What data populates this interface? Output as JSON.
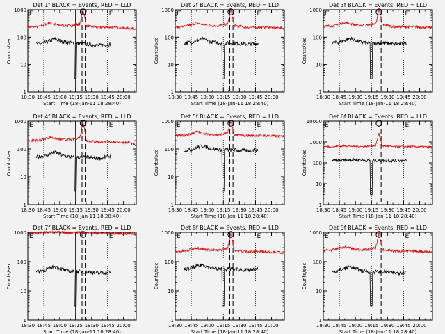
{
  "figure": {
    "start_time_label": "Start Time (18-Jan-11 18:28:40)",
    "colors": {
      "events": "#000000",
      "lld": "#e00000",
      "background": "#f2f2f2"
    }
  },
  "chart_data": [
    {
      "type": "line",
      "title": "Det 1f  BLACK = Events, RED = LLD",
      "xlabel": "Start Time (18-Jan-11 18:28:40)",
      "ylabel": "Counts/sec",
      "y_scale": "log",
      "ylim": [
        1,
        1000
      ],
      "yticks": [
        "1",
        "10",
        "100",
        "1000"
      ],
      "xlim": [
        "18:30",
        "20:12"
      ],
      "xticks": [
        "18:30",
        "18:45",
        "19:00",
        "19:15",
        "19:30",
        "19:45",
        "20:00"
      ],
      "vertical_dotted_lines": [
        "18:45",
        "19:15",
        "19:45"
      ],
      "vertical_dashed_lines": [
        "19:21",
        "19:24"
      ],
      "vertical_solid_lines": [
        "19:15"
      ],
      "markers": {
        "E_left": "E",
        "E_right": "E",
        "circle_at": "19:22"
      },
      "series": [
        {
          "name": "LLD",
          "color": "red",
          "x": [
            "18:30",
            "18:40",
            "18:50",
            "19:00",
            "19:10",
            "19:19",
            "19:22",
            "19:25",
            "19:35",
            "19:50",
            "20:05",
            "20:12"
          ],
          "y": [
            230,
            240,
            330,
            270,
            260,
            300,
            1000,
            260,
            230,
            230,
            210,
            210
          ]
        },
        {
          "name": "Events",
          "color": "black",
          "x": [
            "18:38",
            "18:45",
            "18:55",
            "19:05",
            "19:13",
            "19:27",
            "19:37",
            "19:48"
          ],
          "y": [
            55,
            60,
            85,
            65,
            60,
            55,
            50,
            55
          ]
        }
      ]
    },
    {
      "type": "line",
      "title": "Det 2f  BLACK = Events, RED = LLD",
      "xlabel": "Start Time (18-Jan-11 18:28:40)",
      "ylabel": "Counts/sec",
      "y_scale": "log",
      "ylim": [
        1,
        1000
      ],
      "yticks": [
        "1",
        "10",
        "100",
        "1000"
      ],
      "xlim": [
        "18:30",
        "20:12"
      ],
      "xticks": [
        "18:30",
        "18:45",
        "19:00",
        "19:15",
        "19:30",
        "19:45",
        "20:00"
      ],
      "vertical_dotted_lines": [
        "18:45",
        "19:15",
        "19:45"
      ],
      "vertical_dashed_lines": [
        "19:21",
        "19:24"
      ],
      "vertical_solid_lines": [],
      "markers": {
        "E_left": "E",
        "E_right": "E",
        "circle_at": "19:22"
      },
      "series": [
        {
          "name": "LLD",
          "color": "red",
          "x": [
            "18:30",
            "18:40",
            "18:50",
            "19:00",
            "19:10",
            "19:19",
            "19:22",
            "19:25",
            "19:35",
            "19:50",
            "20:05",
            "20:12"
          ],
          "y": [
            230,
            250,
            330,
            270,
            260,
            300,
            1000,
            270,
            230,
            230,
            220,
            210
          ]
        },
        {
          "name": "Events",
          "color": "black",
          "x": [
            "18:38",
            "18:45",
            "18:55",
            "19:05",
            "19:13",
            "19:27",
            "19:37",
            "19:48"
          ],
          "y": [
            60,
            65,
            85,
            65,
            60,
            60,
            55,
            60
          ]
        }
      ]
    },
    {
      "type": "line",
      "title": "Det 3f  BLACK = Events, RED = LLD",
      "xlabel": "Start Time (18-Jan-11 18:28:40)",
      "ylabel": "Counts/sec",
      "y_scale": "log",
      "ylim": [
        1,
        1000
      ],
      "yticks": [
        "1",
        "10",
        "100",
        "1000"
      ],
      "xlim": [
        "18:30",
        "20:12"
      ],
      "xticks": [
        "18:30",
        "18:45",
        "19:00",
        "19:15",
        "19:30",
        "19:45",
        "20:00"
      ],
      "vertical_dotted_lines": [
        "18:45",
        "19:15",
        "19:45"
      ],
      "vertical_dashed_lines": [
        "19:21",
        "19:24"
      ],
      "vertical_solid_lines": [],
      "markers": {
        "E_left": "E",
        "E_right": "E",
        "circle_at": "19:22"
      },
      "series": [
        {
          "name": "LLD",
          "color": "red",
          "x": [
            "18:30",
            "18:40",
            "18:50",
            "19:00",
            "19:10",
            "19:19",
            "19:22",
            "19:25",
            "19:35",
            "19:50",
            "20:05",
            "20:12"
          ],
          "y": [
            250,
            260,
            350,
            280,
            270,
            320,
            1000,
            290,
            240,
            240,
            230,
            220
          ]
        },
        {
          "name": "Events",
          "color": "black",
          "x": [
            "18:38",
            "18:45",
            "18:55",
            "19:05",
            "19:13",
            "19:27",
            "19:37",
            "19:48"
          ],
          "y": [
            60,
            65,
            90,
            65,
            60,
            60,
            55,
            60
          ]
        }
      ]
    },
    {
      "type": "line",
      "title": "Det 4f  BLACK = Events, RED = LLD",
      "xlabel": "Start Time (18-Jan-11 18:28:40)",
      "ylabel": "Counts/sec",
      "y_scale": "log",
      "ylim": [
        1,
        1000
      ],
      "yticks": [
        "1",
        "10",
        "100",
        "1000"
      ],
      "xlim": [
        "18:30",
        "20:12"
      ],
      "xticks": [
        "18:30",
        "18:45",
        "19:00",
        "19:15",
        "19:30",
        "19:45",
        "20:00"
      ],
      "vertical_dotted_lines": [
        "18:45",
        "19:15",
        "19:45"
      ],
      "vertical_dashed_lines": [
        "19:21",
        "19:24"
      ],
      "vertical_solid_lines": [
        "19:15"
      ],
      "markers": {
        "E_left": "E",
        "E_right": "E",
        "circle_at": "19:22"
      },
      "series": [
        {
          "name": "LLD",
          "color": "red",
          "x": [
            "18:30",
            "18:40",
            "18:50",
            "19:00",
            "19:10",
            "19:19",
            "19:22",
            "19:25",
            "19:35",
            "19:50",
            "20:05",
            "20:12"
          ],
          "y": [
            200,
            200,
            260,
            220,
            210,
            260,
            1000,
            200,
            180,
            180,
            170,
            130
          ]
        },
        {
          "name": "Events",
          "color": "black",
          "x": [
            "18:38",
            "18:45",
            "18:55",
            "19:05",
            "19:13",
            "19:27",
            "19:37",
            "19:48"
          ],
          "y": [
            50,
            55,
            75,
            55,
            50,
            50,
            45,
            55
          ]
        }
      ]
    },
    {
      "type": "line",
      "title": "Det 5f  BLACK = Events, RED = LLD",
      "xlabel": "Start Time (18-Jan-11 18:28:40)",
      "ylabel": "Counts/sec",
      "y_scale": "log",
      "ylim": [
        1,
        1000
      ],
      "yticks": [
        "1",
        "10",
        "100",
        "1000"
      ],
      "xlim": [
        "18:30",
        "20:12"
      ],
      "xticks": [
        "18:30",
        "18:45",
        "19:00",
        "19:15",
        "19:30",
        "19:45",
        "20:00"
      ],
      "vertical_dotted_lines": [
        "18:45",
        "19:15",
        "19:45"
      ],
      "vertical_dashed_lines": [
        "19:21",
        "19:24"
      ],
      "vertical_solid_lines": [],
      "markers": {
        "E_left": "E",
        "E_right": "E",
        "circle_at": "19:22"
      },
      "series": [
        {
          "name": "LLD",
          "color": "red",
          "x": [
            "18:30",
            "18:40",
            "18:50",
            "19:00",
            "19:10",
            "19:19",
            "19:22",
            "19:25",
            "19:35",
            "19:50",
            "20:05",
            "20:12"
          ],
          "y": [
            300,
            310,
            420,
            340,
            320,
            370,
            1000,
            330,
            300,
            300,
            290,
            280
          ]
        },
        {
          "name": "Events",
          "color": "black",
          "x": [
            "18:38",
            "18:45",
            "18:55",
            "19:05",
            "19:13",
            "19:27",
            "19:37",
            "19:48"
          ],
          "y": [
            90,
            95,
            130,
            100,
            95,
            90,
            85,
            95
          ]
        }
      ]
    },
    {
      "type": "line",
      "title": "Det 6f  BLACK = Events, RED = LLD",
      "xlabel": "Start Time (18-Jan-11 18:28:40)",
      "ylabel": "Counts/sec",
      "y_scale": "log",
      "ylim": [
        1,
        10000
      ],
      "yticks": [
        "1",
        "10",
        "100",
        "1000",
        "10000"
      ],
      "xlim": [
        "18:30",
        "20:12"
      ],
      "xticks": [
        "18:30",
        "18:45",
        "19:00",
        "19:15",
        "19:30",
        "19:45",
        "20:00"
      ],
      "vertical_dotted_lines": [
        "18:45",
        "19:15",
        "19:45"
      ],
      "vertical_dashed_lines": [
        "19:21",
        "19:24"
      ],
      "vertical_solid_lines": [],
      "markers": {
        "E_left": "E",
        "E_right": "E",
        "circle_at": "19:22"
      },
      "series": [
        {
          "name": "LLD",
          "color": "red",
          "x": [
            "18:30",
            "18:40",
            "18:50",
            "19:00",
            "19:10",
            "19:19",
            "19:22",
            "19:25",
            "19:35",
            "19:50",
            "20:05",
            "20:12"
          ],
          "y": [
            600,
            600,
            650,
            620,
            600,
            700,
            2500,
            650,
            600,
            600,
            580,
            570
          ]
        },
        {
          "name": "Events",
          "color": "black",
          "x": [
            "18:38",
            "18:45",
            "18:55",
            "19:05",
            "19:13",
            "19:27",
            "19:37",
            "19:48"
          ],
          "y": [
            130,
            130,
            140,
            135,
            130,
            130,
            125,
            130
          ]
        }
      ]
    },
    {
      "type": "line",
      "title": "Det 7f  BLACK = Events, RED = LLD",
      "xlabel": "Start Time (18-Jan-11 18:28:40)",
      "ylabel": "Counts/sec",
      "y_scale": "log",
      "ylim": [
        1,
        1000
      ],
      "yticks": [
        "1",
        "10",
        "100",
        "1000"
      ],
      "xlim": [
        "18:30",
        "20:12"
      ],
      "xticks": [
        "18:30",
        "18:45",
        "19:00",
        "19:15",
        "19:30",
        "19:45",
        "20:00"
      ],
      "vertical_dotted_lines": [
        "18:45",
        "19:15",
        "19:45"
      ],
      "vertical_dashed_lines": [
        "19:21",
        "19:24"
      ],
      "vertical_solid_lines": [
        "19:15"
      ],
      "markers": {
        "E_left": "E",
        "E_right": "E",
        "circle_at": "19:22"
      },
      "series": [
        {
          "name": "LLD",
          "color": "red",
          "x": [
            "18:30",
            "18:40",
            "18:50",
            "19:00",
            "19:10",
            "19:19",
            "19:22",
            "19:25",
            "19:35",
            "19:50",
            "20:05",
            "20:12"
          ],
          "y": [
            900,
            950,
            1000,
            980,
            950,
            1000,
            1000,
            950,
            930,
            920,
            900,
            880
          ]
        },
        {
          "name": "Events",
          "color": "black",
          "x": [
            "18:38",
            "18:45",
            "18:55",
            "19:05",
            "19:13",
            "19:27",
            "19:37",
            "19:48"
          ],
          "y": [
            45,
            50,
            70,
            50,
            45,
            45,
            40,
            45
          ]
        }
      ]
    },
    {
      "type": "line",
      "title": "Det 8f  BLACK = Events, RED = LLD",
      "xlabel": "Start Time (18-Jan-11 18:28:40)",
      "ylabel": "Counts/sec",
      "y_scale": "log",
      "ylim": [
        1,
        1000
      ],
      "yticks": [
        "1",
        "10",
        "100",
        "1000"
      ],
      "xlim": [
        "18:30",
        "20:12"
      ],
      "xticks": [
        "18:30",
        "18:45",
        "19:00",
        "19:15",
        "19:30",
        "19:45",
        "20:00"
      ],
      "vertical_dotted_lines": [
        "18:45",
        "19:15",
        "19:45"
      ],
      "vertical_dashed_lines": [
        "19:21",
        "19:24"
      ],
      "vertical_solid_lines": [],
      "markers": {
        "E_left": "E",
        "E_right": "E",
        "circle_at": "19:22"
      },
      "series": [
        {
          "name": "LLD",
          "color": "red",
          "x": [
            "18:30",
            "18:40",
            "18:50",
            "19:00",
            "19:10",
            "19:19",
            "19:22",
            "19:25",
            "19:35",
            "19:50",
            "20:05",
            "20:12"
          ],
          "y": [
            220,
            230,
            300,
            250,
            240,
            280,
            1000,
            250,
            220,
            220,
            210,
            200
          ]
        },
        {
          "name": "Events",
          "color": "black",
          "x": [
            "18:38",
            "18:45",
            "18:55",
            "19:05",
            "19:13",
            "19:27",
            "19:37",
            "19:48"
          ],
          "y": [
            55,
            60,
            80,
            60,
            55,
            55,
            50,
            55
          ]
        }
      ]
    },
    {
      "type": "line",
      "title": "Det 9f  BLACK = Events, RED = LLD",
      "xlabel": "Start Time (18-Jan-11 18:28:40)",
      "ylabel": "Counts/sec",
      "y_scale": "log",
      "ylim": [
        1,
        1000
      ],
      "yticks": [
        "1",
        "10",
        "100",
        "1000"
      ],
      "xlim": [
        "18:30",
        "20:12"
      ],
      "xticks": [
        "18:30",
        "18:45",
        "19:00",
        "19:15",
        "19:30",
        "19:45",
        "20:00"
      ],
      "vertical_dotted_lines": [
        "18:45",
        "19:15",
        "19:45"
      ],
      "vertical_dashed_lines": [
        "19:21",
        "19:24"
      ],
      "vertical_solid_lines": [],
      "markers": {
        "E_left": "E",
        "E_right": "E",
        "circle_at": "19:22"
      },
      "series": [
        {
          "name": "LLD",
          "color": "red",
          "x": [
            "18:30",
            "18:40",
            "18:50",
            "19:00",
            "19:10",
            "19:19",
            "19:22",
            "19:25",
            "19:35",
            "19:50",
            "20:05",
            "20:12"
          ],
          "y": [
            240,
            250,
            320,
            260,
            250,
            290,
            1000,
            260,
            230,
            230,
            220,
            210
          ]
        },
        {
          "name": "Events",
          "color": "black",
          "x": [
            "18:38",
            "18:45",
            "18:55",
            "19:05",
            "19:13",
            "19:27",
            "19:37",
            "19:48"
          ],
          "y": [
            45,
            50,
            70,
            50,
            45,
            45,
            40,
            45
          ]
        }
      ]
    }
  ]
}
